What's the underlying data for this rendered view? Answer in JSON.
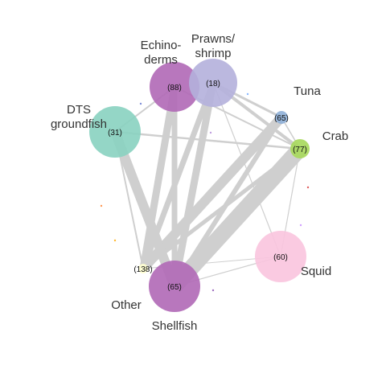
{
  "diagram": {
    "type": "network",
    "nodes": [
      {
        "id": "echinoderms",
        "label_lines": [
          "Echino-",
          "derms"
        ],
        "count": "(88)",
        "color": "#b068b6",
        "weight": 88
      },
      {
        "id": "prawns",
        "label_lines": [
          "Prawns/",
          "shrimp"
        ],
        "count": "(18)",
        "color": "#b4b0dc",
        "weight": 88
      },
      {
        "id": "dts",
        "label_lines": [
          "DTS",
          "groundfish"
        ],
        "count": "(31)",
        "color": "#88d2c0",
        "weight": 90
      },
      {
        "id": "tuna",
        "label_lines": [
          "Tuna"
        ],
        "count": "(65)",
        "color": "#8fb0d8",
        "weight": 10
      },
      {
        "id": "crab",
        "label_lines": [
          "Crab"
        ],
        "count": "(77)",
        "color": "#a6d85a",
        "weight": 16
      },
      {
        "id": "squid",
        "label_lines": [
          "Squid"
        ],
        "count": "(60)",
        "color": "#fac4de",
        "weight": 80
      },
      {
        "id": "other",
        "label_lines": [
          "Other"
        ],
        "count": "(138)",
        "color": "#ffffd0",
        "weight": 4
      },
      {
        "id": "shellfish",
        "label_lines": [
          "Shellfish"
        ],
        "count": "(65)",
        "color": "#b068b6",
        "weight": 80
      }
    ],
    "edges": [
      {
        "from": "crab",
        "to": "shellfish",
        "weight": 10
      },
      {
        "from": "tuna",
        "to": "other",
        "weight": 6
      },
      {
        "from": "dts",
        "to": "shellfish",
        "weight": 6
      },
      {
        "from": "echinoderms",
        "to": "other",
        "weight": 4.5
      },
      {
        "from": "prawns",
        "to": "shellfish",
        "weight": 4.5
      },
      {
        "from": "prawns",
        "to": "other",
        "weight": 3.5
      },
      {
        "from": "echinoderms",
        "to": "shellfish",
        "weight": 3.5
      },
      {
        "from": "tuna",
        "to": "shellfish",
        "weight": 3
      },
      {
        "from": "crab",
        "to": "other",
        "weight": 2.5
      },
      {
        "from": "prawns",
        "to": "crab",
        "weight": 2
      },
      {
        "from": "prawns",
        "to": "tuna",
        "weight": 1.5
      },
      {
        "from": "dts",
        "to": "crab",
        "weight": 1.2
      },
      {
        "from": "dts",
        "to": "echinoderms",
        "weight": 1
      },
      {
        "from": "dts",
        "to": "other",
        "weight": 1
      },
      {
        "from": "echinoderms",
        "to": "crab",
        "weight": 1
      },
      {
        "from": "prawns",
        "to": "squid",
        "weight": 0.6
      },
      {
        "from": "crab",
        "to": "squid",
        "weight": 0.6
      },
      {
        "from": "squid",
        "to": "shellfish",
        "weight": 0.6
      },
      {
        "from": "squid",
        "to": "other",
        "weight": 0.5
      },
      {
        "from": "tuna",
        "to": "crab",
        "weight": 0.8
      }
    ],
    "scatter_dots": [
      {
        "color": "#7f8fd8"
      },
      {
        "color": "#8ab8ff"
      },
      {
        "color": "#c0a0e0"
      },
      {
        "color": "#e06060"
      },
      {
        "color": "#ff9955"
      },
      {
        "color": "#ffb830"
      },
      {
        "color": "#a070c0"
      },
      {
        "color": "#d0a0ff"
      }
    ]
  }
}
